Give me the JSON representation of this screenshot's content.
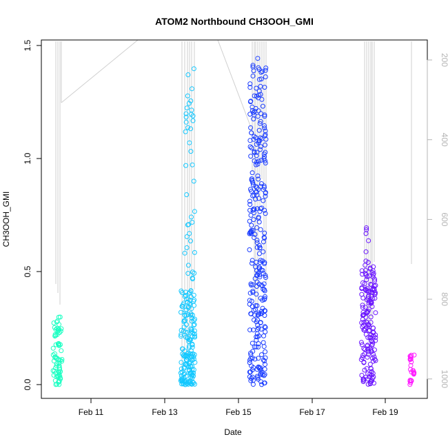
{
  "chart_data": {
    "type": "scatter",
    "title": "ATOM2 Northbound CH3OOH_GMI",
    "xlabel": "Date",
    "ylabel": "CH3OOH_GMI",
    "x_ticks": [
      "Feb 11",
      "Feb 13",
      "Feb 15",
      "Feb 17",
      "Feb 19"
    ],
    "y_ticks": [
      "0.0",
      "0.5",
      "1.0",
      "1.5"
    ],
    "y_right_ticks": [
      "200",
      "400",
      "600",
      "800",
      "1000"
    ],
    "colors": {
      "line": "#cfcfcf",
      "axis": "#000000",
      "right_axis": "#b4b4b4"
    },
    "clusters": [
      {
        "date": "Feb 10",
        "color": "#19ffc2",
        "ch3ooh_range": [
          0.0,
          0.3
        ],
        "n_points": 70
      },
      {
        "date": "Feb 13",
        "color": "#14c8ff",
        "ch3ooh_range": [
          0.0,
          1.4
        ],
        "n_points": 210
      },
      {
        "date": "Feb 15",
        "color": "#1a3cff",
        "ch3ooh_range": [
          0.0,
          1.46
        ],
        "n_points": 300
      },
      {
        "date": "Feb 18",
        "color": "#6a14ff",
        "ch3ooh_range": [
          0.02,
          0.73
        ],
        "n_points": 170
      },
      {
        "date": "Feb 19",
        "color": "#ff19ff",
        "ch3ooh_range": [
          0.0,
          0.15
        ],
        "n_points": 24
      }
    ]
  }
}
